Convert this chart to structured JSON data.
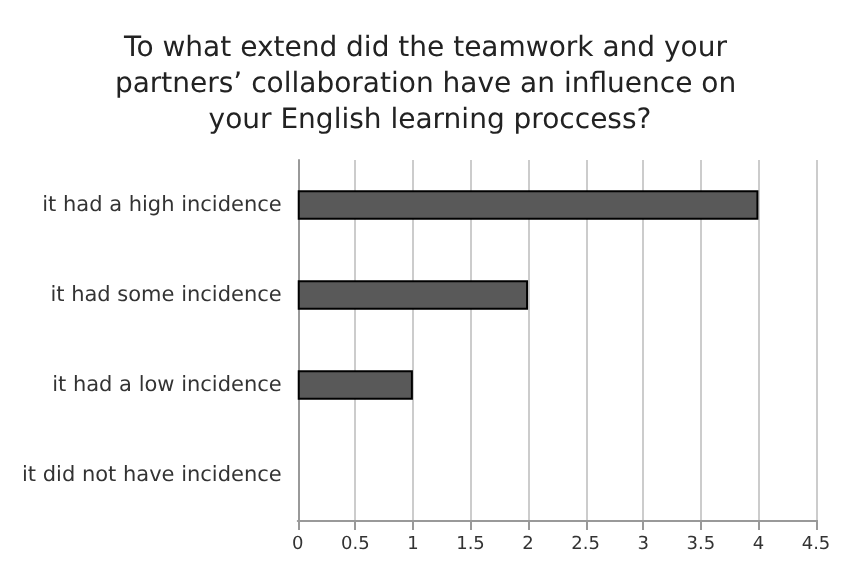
{
  "chart_data": {
    "type": "bar",
    "orientation": "horizontal",
    "title": "To what extend did the teamwork and your partners’ collaboration have an influence on your English learning proccess?",
    "categories": [
      "it had a high incidence",
      "it had some incidence",
      "it had a low incidence",
      "it did not have incidence"
    ],
    "values": [
      4,
      2,
      1,
      0
    ],
    "color": "#595959",
    "xlim": [
      0,
      4.5
    ],
    "xticks": [
      0,
      0.5,
      1,
      1.5,
      2,
      2.5,
      3,
      3.5,
      4,
      4.5
    ],
    "grid": "x"
  }
}
